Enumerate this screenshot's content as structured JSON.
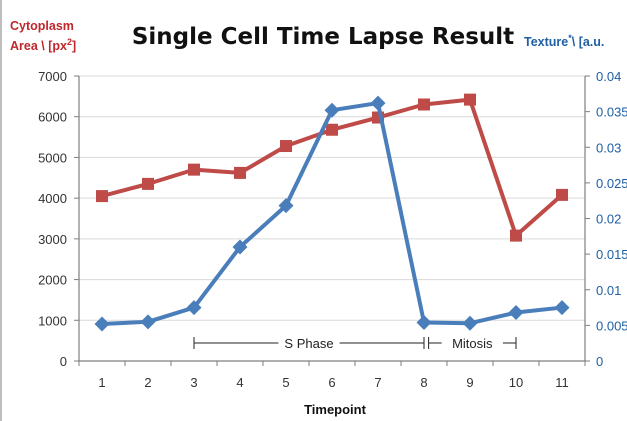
{
  "chart_data": {
    "type": "line",
    "title": "Single Cell Time Lapse Result",
    "xlabel": "Timepoint",
    "ylabel_left": [
      "Cytoplasm",
      "Area \\ [px",
      "2",
      "]"
    ],
    "ylabel_right": [
      "Texture",
      "*",
      "\\ [a.u."
    ],
    "x": [
      1,
      2,
      3,
      4,
      5,
      6,
      7,
      8,
      9,
      10,
      11
    ],
    "xlim": [
      0.5,
      11.5
    ],
    "ylim_left": [
      0,
      7000
    ],
    "yticks_left": [
      "0",
      "1000",
      "2000",
      "3000",
      "4000",
      "5000",
      "6000",
      "7000"
    ],
    "ylim_right": [
      0,
      0.04
    ],
    "yticks_right": [
      "0",
      "0.005",
      "0.01",
      "0.015",
      "0.02",
      "0.025",
      "0.03",
      "0.035",
      "0.04"
    ],
    "grid": true,
    "series": [
      {
        "axis": "left",
        "color": "#be4b48",
        "marker": "square",
        "values": [
          4050,
          4350,
          4700,
          4620,
          5280,
          5680,
          5980,
          6300,
          6420,
          3080,
          4080
        ]
      },
      {
        "axis": "right",
        "color": "#4a7ebb",
        "marker": "diamond",
        "values": [
          0.0052,
          0.0055,
          0.0075,
          0.016,
          0.0218,
          0.0352,
          0.0362,
          0.0054,
          0.0053,
          0.0068,
          0.0075
        ]
      }
    ],
    "annotations": [
      {
        "label": "S Phase",
        "from": 3,
        "to": 8
      },
      {
        "label": "Mitosis",
        "from": 8.1,
        "to": 10
      }
    ],
    "colors": {
      "left_axis": "#c0272d",
      "right_axis": "#1f5fa5",
      "grid": "#d9d9d9",
      "axis": "#7f7f7f",
      "text": "#333333"
    }
  }
}
